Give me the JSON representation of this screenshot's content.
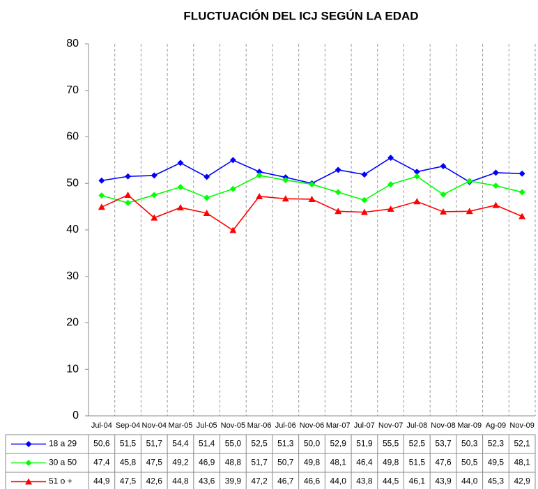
{
  "chart_data": {
    "type": "line",
    "title": "FLUCTUACIÓN DEL ICJ SEGÚN LA EDAD",
    "categories": [
      "Jul-04",
      "Sep-04",
      "Nov-04",
      "Mar-05",
      "Jul-05",
      "Nov-05",
      "Mar-06",
      "Jul-06",
      "Nov-06",
      "Mar-07",
      "Jul-07",
      "Nov-07",
      "Jul-08",
      "Nov-08",
      "Mar-09",
      "Ag-09",
      "Nov-09"
    ],
    "series": [
      {
        "name": "18 a 29",
        "color": "#0000ff",
        "marker": "diamond",
        "values": [
          50.6,
          51.5,
          51.7,
          54.4,
          51.4,
          55.0,
          52.5,
          51.3,
          50.0,
          52.9,
          51.9,
          55.5,
          52.5,
          53.7,
          50.3,
          52.3,
          52.1
        ],
        "value_labels": [
          "50,6",
          "51,5",
          "51,7",
          "54,4",
          "51,4",
          "55,0",
          "52,5",
          "51,3",
          "50,0",
          "52,9",
          "51,9",
          "55,5",
          "52,5",
          "53,7",
          "50,3",
          "52,3",
          "52,1"
        ]
      },
      {
        "name": "30 a 50",
        "color": "#00ff00",
        "marker": "diamond",
        "values": [
          47.4,
          45.8,
          47.5,
          49.2,
          46.9,
          48.8,
          51.7,
          50.7,
          49.8,
          48.1,
          46.4,
          49.8,
          51.5,
          47.6,
          50.5,
          49.5,
          48.1
        ],
        "value_labels": [
          "47,4",
          "45,8",
          "47,5",
          "49,2",
          "46,9",
          "48,8",
          "51,7",
          "50,7",
          "49,8",
          "48,1",
          "46,4",
          "49,8",
          "51,5",
          "47,6",
          "50,5",
          "49,5",
          "48,1"
        ]
      },
      {
        "name": "51 o +",
        "color": "#ff0000",
        "marker": "triangle",
        "values": [
          44.9,
          47.5,
          42.6,
          44.8,
          43.6,
          39.9,
          47.2,
          46.7,
          46.6,
          44.0,
          43.8,
          44.5,
          46.1,
          43.9,
          44.0,
          45.3,
          42.9
        ],
        "value_labels": [
          "44,9",
          "47,5",
          "42,6",
          "44,8",
          "43,6",
          "39,9",
          "47,2",
          "46,7",
          "46,6",
          "44,0",
          "43,8",
          "44,5",
          "46,1",
          "43,9",
          "44,0",
          "45,3",
          "42,9"
        ]
      }
    ],
    "ylim": [
      0,
      80
    ],
    "yticks": [
      0,
      10,
      20,
      30,
      40,
      50,
      60,
      70,
      80
    ],
    "grid": true,
    "data_table": true
  }
}
